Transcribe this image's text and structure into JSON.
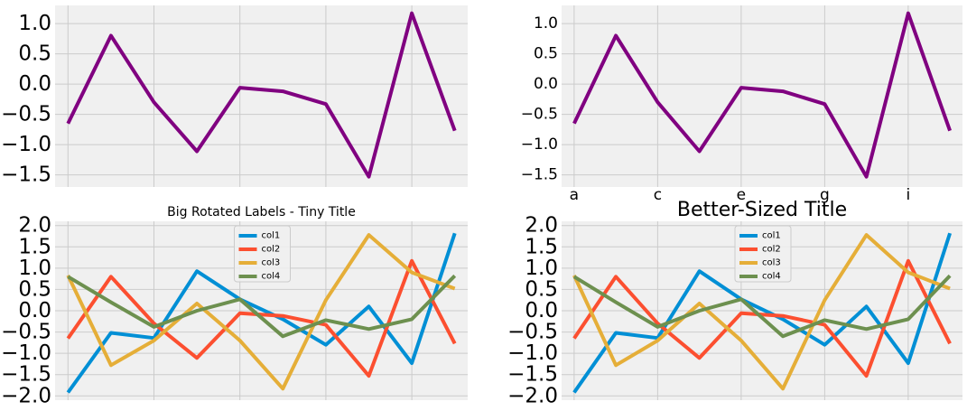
{
  "style": {
    "figure_background": "#ffffff",
    "axes_background": "#f0f0f0",
    "grid_color": "#cbcbcb",
    "tick_label_color": "#000000"
  },
  "chart_data": [
    {
      "type": "line",
      "title": "",
      "x": [
        0,
        1,
        2,
        3,
        4,
        5,
        6,
        7,
        8,
        9
      ],
      "series": [
        {
          "values": [
            -0.65,
            0.8,
            -0.3,
            -1.11,
            -0.06,
            -0.12,
            -0.33,
            -1.53,
            1.17,
            -0.77
          ],
          "color": "#800080"
        }
      ],
      "xlim": [
        -0.3,
        9.3
      ],
      "ylim": [
        -1.7,
        1.3
      ],
      "xticks": [
        0,
        2,
        4,
        6,
        8
      ],
      "xtick_labels": [
        "",
        "",
        "",
        "",
        ""
      ],
      "yticks": [
        -1.5,
        -1.0,
        -0.5,
        0.0,
        0.5,
        1.0
      ],
      "ytick_labels": [
        "−1.5",
        "−1.0",
        "−0.5",
        "0.0",
        "0.5",
        "1.0"
      ],
      "grid": true,
      "legend": null
    },
    {
      "type": "line",
      "title": "",
      "x": [
        0,
        1,
        2,
        3,
        4,
        5,
        6,
        7,
        8,
        9
      ],
      "series": [
        {
          "values": [
            -0.65,
            0.8,
            -0.3,
            -1.11,
            -0.06,
            -0.12,
            -0.33,
            -1.53,
            1.17,
            -0.77
          ],
          "color": "#800080"
        }
      ],
      "xlim": [
        -0.3,
        9.3
      ],
      "ylim": [
        -1.7,
        1.3
      ],
      "xticks": [
        0,
        2,
        4,
        6,
        8
      ],
      "xtick_labels": [
        "a",
        "c",
        "e",
        "g",
        "i"
      ],
      "yticks": [
        -1.5,
        -1.0,
        -0.5,
        0.0,
        0.5,
        1.0
      ],
      "ytick_labels": [
        "−1.5",
        "−1.0",
        "−0.5",
        "0.0",
        "0.5",
        "1.0"
      ],
      "grid": true,
      "legend": null
    },
    {
      "type": "line",
      "title": "Big Rotated Labels - Tiny Title",
      "x": [
        0,
        1,
        2,
        3,
        4,
        5,
        6,
        7,
        8,
        9
      ],
      "series": [
        {
          "name": "col1",
          "values": [
            -1.92,
            -0.52,
            -0.64,
            0.93,
            0.27,
            -0.2,
            -0.8,
            0.1,
            -1.23,
            1.82
          ],
          "color": "#008fd5"
        },
        {
          "name": "col2",
          "values": [
            -0.65,
            0.8,
            -0.3,
            -1.11,
            -0.06,
            -0.12,
            -0.33,
            -1.53,
            1.17,
            -0.77
          ],
          "color": "#fc4f30"
        },
        {
          "name": "col3",
          "values": [
            0.83,
            -1.28,
            -0.7,
            0.17,
            -0.7,
            -1.83,
            0.25,
            1.78,
            0.9,
            0.52
          ],
          "color": "#e5ae38"
        },
        {
          "name": "col4",
          "values": [
            0.8,
            0.2,
            -0.38,
            0.0,
            0.27,
            -0.6,
            -0.22,
            -0.43,
            -0.2,
            0.82
          ],
          "color": "#6d904f"
        }
      ],
      "xlim": [
        -0.3,
        9.3
      ],
      "ylim": [
        -2.1,
        2.1
      ],
      "xticks": [
        0,
        2,
        4,
        6,
        8
      ],
      "xtick_labels": [
        "",
        "",
        "",
        "",
        ""
      ],
      "yticks": [
        -2.0,
        -1.5,
        -1.0,
        -0.5,
        0.0,
        0.5,
        1.0,
        1.5,
        2.0
      ],
      "ytick_labels": [
        "−2.0",
        "−1.5",
        "−1.0",
        "−0.5",
        "0.0",
        "0.5",
        "1.0",
        "1.5",
        "2.0"
      ],
      "grid": true,
      "legend": "upper center"
    },
    {
      "type": "line",
      "title": "Better-Sized Title",
      "x": [
        0,
        1,
        2,
        3,
        4,
        5,
        6,
        7,
        8,
        9
      ],
      "series": [
        {
          "name": "col1",
          "values": [
            -1.92,
            -0.52,
            -0.64,
            0.93,
            0.27,
            -0.2,
            -0.8,
            0.1,
            -1.23,
            1.82
          ],
          "color": "#008fd5"
        },
        {
          "name": "col2",
          "values": [
            -0.65,
            0.8,
            -0.3,
            -1.11,
            -0.06,
            -0.12,
            -0.33,
            -1.53,
            1.17,
            -0.77
          ],
          "color": "#fc4f30"
        },
        {
          "name": "col3",
          "values": [
            0.83,
            -1.28,
            -0.7,
            0.17,
            -0.7,
            -1.83,
            0.25,
            1.78,
            0.9,
            0.52
          ],
          "color": "#e5ae38"
        },
        {
          "name": "col4",
          "values": [
            0.8,
            0.2,
            -0.38,
            0.0,
            0.27,
            -0.6,
            -0.22,
            -0.43,
            -0.2,
            0.82
          ],
          "color": "#6d904f"
        }
      ],
      "xlim": [
        -0.3,
        9.3
      ],
      "ylim": [
        -2.1,
        2.1
      ],
      "xticks": [
        0,
        2,
        4,
        6,
        8
      ],
      "xtick_labels": [
        "",
        "",
        "",
        "",
        ""
      ],
      "yticks": [
        -2.0,
        -1.5,
        -1.0,
        -0.5,
        0.0,
        0.5,
        1.0,
        1.5,
        2.0
      ],
      "ytick_labels": [
        "−2.0",
        "−1.5",
        "−1.0",
        "−0.5",
        "0.0",
        "0.5",
        "1.0",
        "1.5",
        "2.0"
      ],
      "grid": true,
      "legend": "upper center"
    }
  ]
}
